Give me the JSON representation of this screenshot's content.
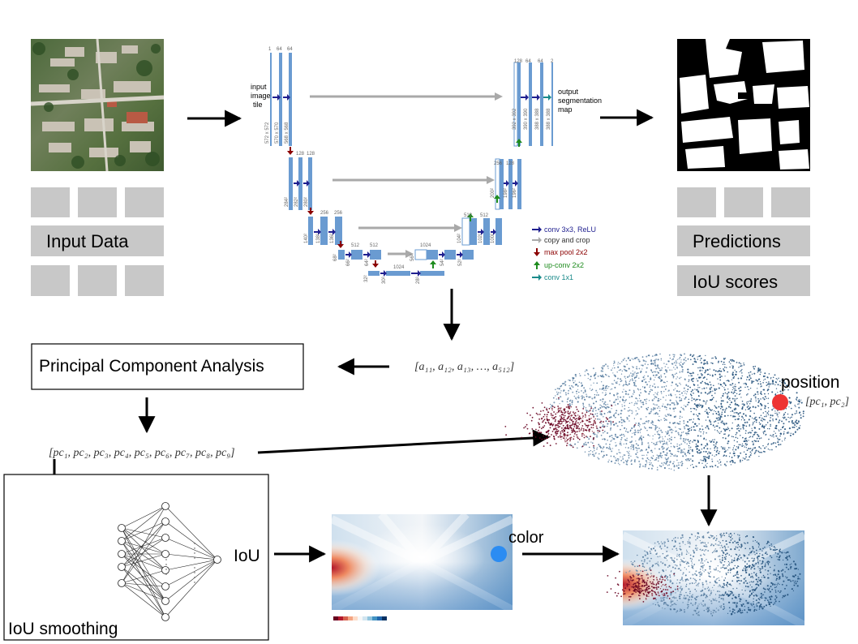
{
  "left_panel": {
    "label": "Input Data"
  },
  "right_panel": {
    "label_top": "Predictions",
    "label_bottom": "IoU scores"
  },
  "unet": {
    "input_label": [
      "input",
      "image",
      "tile"
    ],
    "output_label": [
      "output",
      "segmentation",
      "map"
    ],
    "channel_labels": {
      "l1": [
        "1",
        "64",
        "64"
      ],
      "l2": [
        "128",
        "128"
      ],
      "l3": [
        "256",
        "256"
      ],
      "l4": [
        "512",
        "512"
      ],
      "bottom": [
        "1024"
      ],
      "bottom_right": [
        "1024"
      ],
      "r4": [
        "512",
        "512"
      ],
      "r3": [
        "256",
        "128"
      ],
      "r2": [
        "256",
        "128"
      ],
      "r1": [
        "128",
        "64",
        "64",
        "2"
      ]
    },
    "size_labels": {
      "l1": [
        "572 x 572",
        "570 x 570",
        "568 x 568"
      ],
      "l2": [
        "284²",
        "282²",
        "280²"
      ],
      "l3": [
        "140²",
        "138²",
        "136²"
      ],
      "l4": [
        "68²",
        "66²",
        "64²"
      ],
      "bottom": [
        "32²",
        "30²",
        "28²"
      ],
      "r4": [
        "56²",
        "54²",
        "52²"
      ],
      "r3": [
        "104²",
        "102²",
        "100²"
      ],
      "r2": [
        "200²",
        "198²",
        "196²"
      ],
      "r1": [
        "392 x 392",
        "390 x 390",
        "388 x 388",
        "388 x 388"
      ]
    },
    "legend": [
      {
        "label": "conv 3x3, ReLU",
        "color": "#1f1f8f"
      },
      {
        "label": "copy and crop",
        "color": "#a9a9a9"
      },
      {
        "label": "max pool 2x2",
        "color": "#8b0000"
      },
      {
        "label": "up-conv 2x2",
        "color": "#1e8c1e"
      },
      {
        "label": "conv 1x1",
        "color": "#1a8a8a"
      }
    ]
  },
  "pca_box": {
    "label": "Principal Component Analysis"
  },
  "feature_vector": {
    "label": "[a₁₁, a₁₂, a₁₃, …, a₅₁₂]"
  },
  "pc_vector": {
    "label": "[pc₁, pc₂, pc₃, pc₄, pc₅, pc₆, pc₇, pc₈, pc₉]"
  },
  "scatter": {
    "position_label": "position",
    "position_vector": "[pc₁, pc₂]"
  },
  "iou_box": {
    "label": "IoU smoothing",
    "output_label": "IoU"
  },
  "heatmap": {
    "color_label": "color"
  },
  "colors": {
    "marker_red": "#ee3333",
    "marker_blue": "#2b8cf2",
    "unet_blue": "#6a9bd1"
  }
}
